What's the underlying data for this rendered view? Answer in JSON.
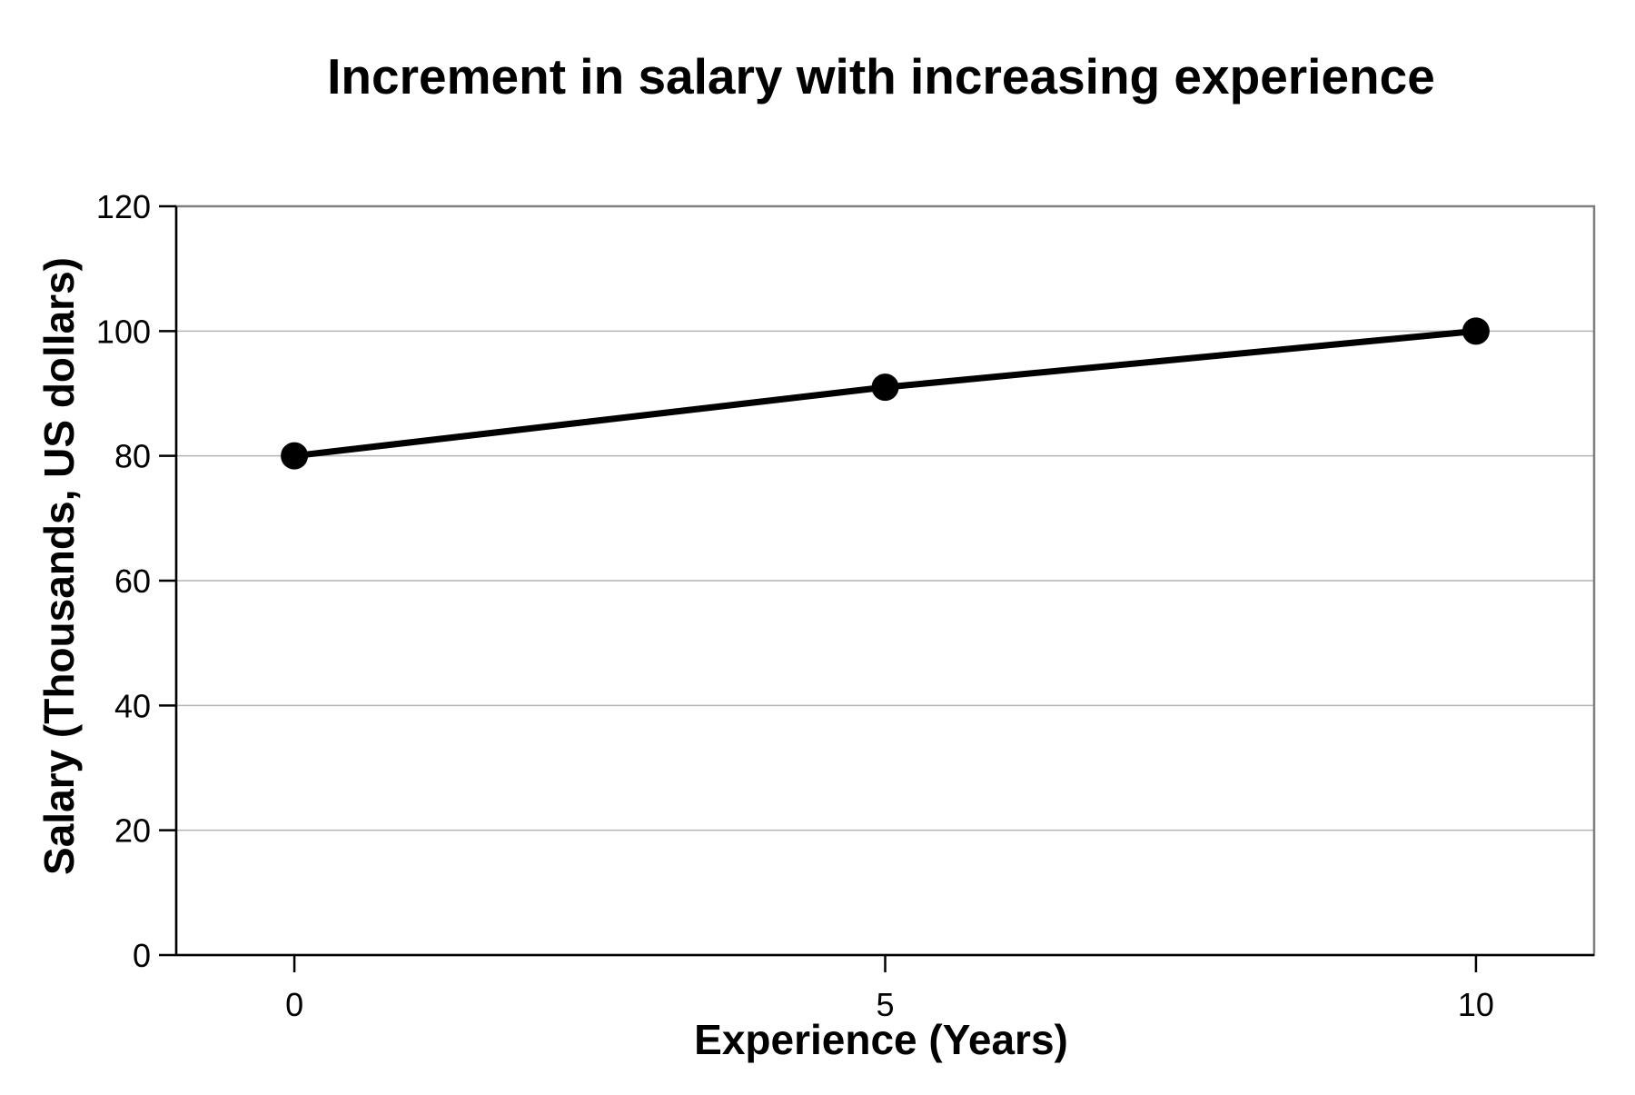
{
  "chart_data": {
    "type": "line",
    "title": "Increment in salary with increasing experience",
    "xlabel": "Experience (Years)",
    "ylabel": "Salary (Thousands, US dollars)",
    "x": [
      0,
      5,
      10
    ],
    "series": [
      {
        "values": [
          80,
          91,
          100
        ]
      }
    ],
    "xlim": [
      -1,
      11
    ],
    "ylim": [
      0,
      120
    ],
    "x_ticks": [
      0,
      5,
      10
    ],
    "y_ticks": [
      0,
      20,
      40,
      60,
      80,
      100,
      120
    ],
    "x_tick_labels": [
      "0",
      "5",
      "10"
    ],
    "y_tick_labels": [
      "0",
      "20",
      "40",
      "60",
      "80",
      "100",
      "120"
    ],
    "grid": "horizontal",
    "legend": "none",
    "colors": {
      "line": "#000000",
      "grid": "#b3b3b3",
      "frame": "#7f7f7f",
      "axis": "#000000"
    }
  }
}
